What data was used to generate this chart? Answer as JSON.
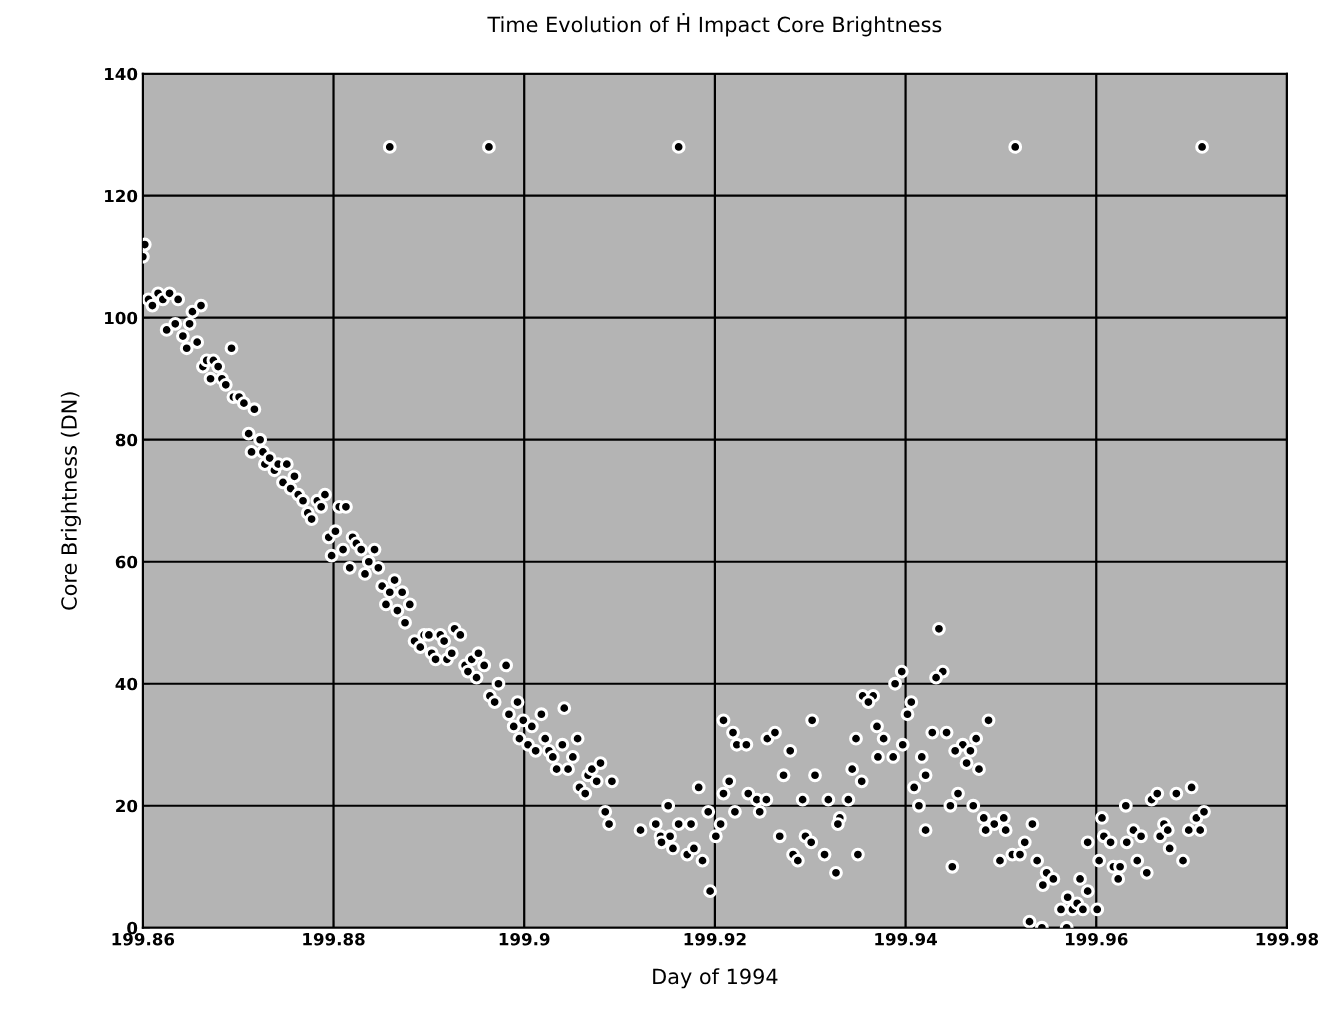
{
  "chart_data": {
    "type": "scatter",
    "title": "Time Evolution of Ḣ Impact Core Brightness",
    "xlabel": "Day of 1994",
    "ylabel": "Core Brightness (DN)",
    "x": [
      199.86,
      199.8602,
      199.8606,
      199.861,
      199.8616,
      199.8621,
      199.8625,
      199.8628,
      199.8634,
      199.8637,
      199.8642,
      199.8646,
      199.8649,
      199.8652,
      199.8657,
      199.8661,
      199.8663,
      199.8667,
      199.8671,
      199.8674,
      199.8679,
      199.8683,
      199.8687,
      199.8693,
      199.8695,
      199.8701,
      199.8706,
      199.8711,
      199.8714,
      199.8717,
      199.8723,
      199.8726,
      199.8728,
      199.8733,
      199.8738,
      199.8742,
      199.8747,
      199.8751,
      199.8755,
      199.8759,
      199.8763,
      199.8768,
      199.8773,
      199.8777,
      199.8783,
      199.8787,
      199.8791,
      199.8795,
      199.8798,
      199.8802,
      199.8806,
      199.881,
      199.8813,
      199.8817,
      199.882,
      199.8824,
      199.8829,
      199.8833,
      199.8837,
      199.8843,
      199.8847,
      199.8851,
      199.8855,
      199.8859,
      199.8864,
      199.8867,
      199.8872,
      199.8875,
      199.888,
      199.8885,
      199.8891,
      199.8895,
      199.89,
      199.8903,
      199.8907,
      199.8912,
      199.8916,
      199.8919,
      199.8924,
      199.8927,
      199.8933,
      199.8938,
      199.8941,
      199.8945,
      199.895,
      199.8952,
      199.8958,
      199.8964,
      199.8969,
      199.8973,
      199.8981,
      199.8984,
      199.8989,
      199.8993,
      199.8995,
      199.8999,
      199.9004,
      199.9008,
      199.9012,
      199.9018,
      199.9022,
      199.9026,
      199.903,
      199.9034,
      199.904,
      199.9042,
      199.9046,
      199.9051,
      199.9056,
      199.9058,
      199.9064,
      199.9067,
      199.9071,
      199.9076,
      199.908,
      199.9085,
      199.9089,
      199.9092,
      199.9122,
      199.9138,
      199.9143,
      199.9153,
      199.9144,
      199.9151,
      199.9156,
      199.9162,
      199.9171,
      199.9175,
      199.9178,
      199.9183,
      199.9187,
      199.9193,
      199.9195,
      199.9201,
      199.9206,
      199.9209,
      199.9209,
      199.9215,
      199.9219,
      199.9221,
      199.9223,
      199.9233,
      199.9235,
      199.9244,
      199.9247,
      199.9254,
      199.9255,
      199.9263,
      199.9268,
      199.9272,
      199.9279,
      199.9282,
      199.9287,
      199.9292,
      199.9295,
      199.9301,
      199.9302,
      199.9305,
      199.9315,
      199.9319,
      199.9327,
      199.9331,
      199.9329,
      199.934,
      199.9344,
      199.935,
      199.9354,
      199.9355,
      199.9366,
      199.9361,
      199.937,
      199.9377,
      199.9371,
      199.9387,
      199.9389,
      199.9435,
      199.9396,
      199.9439,
      199.9432,
      199.9406,
      199.9402,
      199.9348,
      199.9397,
      199.9428,
      199.9443,
      199.9487,
      199.946,
      199.9474,
      199.9452,
      199.9468,
      199.9417,
      199.9464,
      199.9477,
      199.9421,
      199.9409,
      199.9455,
      199.9414,
      199.9447,
      199.9471,
      199.9482,
      199.9503,
      199.9493,
      199.9484,
      199.9533,
      199.9421,
      199.9505,
      199.9525,
      199.9512,
      199.952,
      199.9499,
      199.9538,
      199.9449,
      199.9548,
      199.9555,
      199.9544,
      199.957,
      199.9563,
      199.9575,
      199.953,
      199.9543,
      199.9569,
      199.9583,
      199.9591,
      199.958,
      199.9586,
      199.9601,
      199.9606,
      199.9603,
      199.9591,
      199.9608,
      199.9615,
      199.9618,
      199.9625,
      199.9623,
      199.9631,
      199.9632,
      199.9639,
      199.9643,
      199.9647,
      199.9653,
      199.9658,
      199.9664,
      199.9667,
      199.9671,
      199.9677,
      199.9675,
      199.9684,
      199.9691,
      199.97,
      199.9705,
      199.9713,
      199.9697,
      199.9709,
      199.8859,
      199.8963,
      199.9162,
      199.9515,
      199.9711
    ],
    "values": [
      110,
      112,
      103,
      102,
      104,
      103,
      98,
      104,
      99,
      103,
      97,
      95,
      99,
      101,
      96,
      102,
      92,
      93,
      90,
      93,
      92,
      90,
      89,
      95,
      87,
      87,
      86,
      81,
      78,
      85,
      80,
      78,
      76,
      77,
      75,
      76,
      73,
      76,
      72,
      74,
      71,
      70,
      68,
      67,
      70,
      69,
      71,
      64,
      61,
      65,
      69,
      62,
      69,
      59,
      64,
      63,
      62,
      58,
      60,
      62,
      59,
      56,
      53,
      55,
      57,
      52,
      55,
      50,
      53,
      47,
      46,
      48,
      48,
      45,
      44,
      48,
      47,
      44,
      45,
      49,
      48,
      43,
      42,
      44,
      41,
      45,
      43,
      38,
      37,
      40,
      43,
      35,
      33,
      37,
      31,
      34,
      30,
      33,
      29,
      35,
      31,
      29,
      28,
      26,
      30,
      36,
      26,
      28,
      31,
      23,
      22,
      25,
      26,
      24,
      27,
      19,
      17,
      24,
      16,
      17,
      15,
      15,
      14,
      20,
      13,
      17,
      12,
      17,
      13,
      23,
      11,
      19,
      6,
      15,
      17,
      22,
      34,
      24,
      32,
      19,
      30,
      30,
      22,
      21,
      19,
      21,
      31,
      32,
      15,
      25,
      29,
      12,
      11,
      21,
      15,
      14,
      34,
      25,
      12,
      21,
      9,
      18,
      17,
      21,
      26,
      12,
      24,
      38,
      38,
      37,
      33,
      31,
      28,
      28,
      40,
      49,
      42,
      42,
      41,
      37,
      35,
      31,
      30,
      32,
      32,
      34,
      30,
      31,
      29,
      29,
      28,
      27,
      26,
      25,
      23,
      22,
      20,
      20,
      20,
      18,
      18,
      17,
      16,
      17,
      16,
      16,
      14,
      12,
      12,
      11,
      11,
      10,
      9,
      8,
      7,
      5,
      3,
      3,
      1,
      0,
      0,
      8,
      6,
      4,
      3,
      3,
      18,
      11,
      14,
      15,
      14,
      10,
      10,
      8,
      20,
      14,
      16,
      11,
      15,
      9,
      21,
      22,
      15,
      17,
      13,
      16,
      22,
      11,
      23,
      18,
      19,
      16,
      16,
      128,
      128,
      128,
      128,
      128
    ],
    "color": "#000000",
    "marker": "circle",
    "xlim": [
      199.86,
      199.98
    ],
    "xticks": [
      199.86,
      199.88,
      199.9,
      199.92,
      199.94,
      199.96,
      199.98
    ],
    "ylim": [
      0,
      140
    ],
    "yticks": [
      0,
      20,
      40,
      60,
      80,
      100,
      120,
      140
    ],
    "grid": true,
    "legend": false
  }
}
